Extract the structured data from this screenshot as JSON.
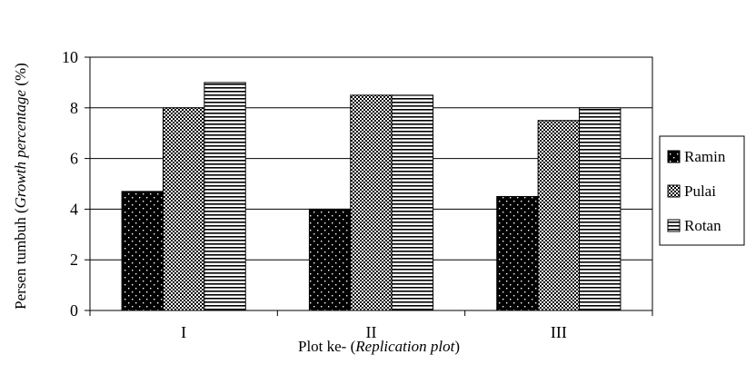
{
  "chart_data": {
    "type": "bar",
    "categories": [
      "I",
      "II",
      "III"
    ],
    "series": [
      {
        "name": "Ramin",
        "values": [
          4.7,
          4.0,
          4.5
        ],
        "pattern": "dots-on-black"
      },
      {
        "name": "Pulai",
        "values": [
          8.0,
          8.5,
          7.5
        ],
        "pattern": "checkered-with-white-dots"
      },
      {
        "name": "Rotan",
        "values": [
          9.0,
          8.5,
          8.0
        ],
        "pattern": "horizontal-stripes"
      }
    ],
    "ylim": [
      0,
      10
    ],
    "yticks": [
      0,
      2,
      4,
      6,
      8,
      10
    ],
    "grid": true,
    "legend_position": "right",
    "xlabel": {
      "plain": "Plot ke- (",
      "italic": "Replication plot",
      "close": ")"
    },
    "ylabel": {
      "plain": "Persen tumbuh  (",
      "italic": "Growth percentage",
      "close": " (%)"
    },
    "colors": {
      "frame": "#000000",
      "grid": "#000000",
      "background": "#ffffff"
    }
  }
}
